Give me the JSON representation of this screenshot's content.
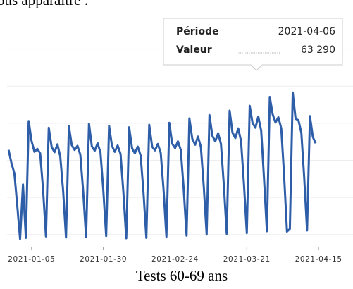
{
  "intro": "ous apparaître :",
  "chart_data": {
    "type": "line",
    "title": "Tests 60-69 ans",
    "color": "#2f5ea8",
    "grid": true,
    "xlim": [
      "2020-12-25",
      "2021-04-27"
    ],
    "xticks": [
      "2021-01-05",
      "2021-01-30",
      "2021-02-24",
      "2021-03-21",
      "2021-04-15"
    ],
    "ylim": [
      20000,
      85000
    ],
    "yticks": [
      25000,
      35000,
      45000,
      55000,
      65000,
      75000
    ],
    "x": [
      "2020-12-28",
      "2020-12-29",
      "2020-12-30",
      "2020-12-31",
      "2021-01-01",
      "2021-01-02",
      "2021-01-03",
      "2021-01-04",
      "2021-01-05",
      "2021-01-06",
      "2021-01-07",
      "2021-01-08",
      "2021-01-09",
      "2021-01-10",
      "2021-01-11",
      "2021-01-12",
      "2021-01-13",
      "2021-01-14",
      "2021-01-15",
      "2021-01-16",
      "2021-01-17",
      "2021-01-18",
      "2021-01-19",
      "2021-01-20",
      "2021-01-21",
      "2021-01-22",
      "2021-01-23",
      "2021-01-24",
      "2021-01-25",
      "2021-01-26",
      "2021-01-27",
      "2021-01-28",
      "2021-01-29",
      "2021-01-30",
      "2021-01-31",
      "2021-02-01",
      "2021-02-02",
      "2021-02-03",
      "2021-02-04",
      "2021-02-05",
      "2021-02-06",
      "2021-02-07",
      "2021-02-08",
      "2021-02-09",
      "2021-02-10",
      "2021-02-11",
      "2021-02-12",
      "2021-02-13",
      "2021-02-14",
      "2021-02-15",
      "2021-02-16",
      "2021-02-17",
      "2021-02-18",
      "2021-02-19",
      "2021-02-20",
      "2021-02-21",
      "2021-02-22",
      "2021-02-23",
      "2021-02-24",
      "2021-02-25",
      "2021-02-26",
      "2021-02-27",
      "2021-02-28",
      "2021-03-01",
      "2021-03-02",
      "2021-03-03",
      "2021-03-04",
      "2021-03-05",
      "2021-03-06",
      "2021-03-07",
      "2021-03-08",
      "2021-03-09",
      "2021-03-10",
      "2021-03-11",
      "2021-03-12",
      "2021-03-13",
      "2021-03-14",
      "2021-03-15",
      "2021-03-16",
      "2021-03-17",
      "2021-03-18",
      "2021-03-19",
      "2021-03-20",
      "2021-03-21",
      "2021-03-22",
      "2021-03-23",
      "2021-03-24",
      "2021-03-25",
      "2021-03-26",
      "2021-03-27",
      "2021-03-28",
      "2021-03-29",
      "2021-03-30",
      "2021-03-31",
      "2021-04-01",
      "2021-04-02",
      "2021-04-03",
      "2021-04-04",
      "2021-04-05",
      "2021-04-06",
      "2021-04-07",
      "2021-04-08",
      "2021-04-09",
      "2021-04-10",
      "2021-04-11",
      "2021-04-12",
      "2021-04-13",
      "2021-04-14"
    ],
    "values": [
      47800,
      44200,
      41500,
      33000,
      23800,
      38500,
      24100,
      55600,
      50200,
      47300,
      48100,
      46900,
      37200,
      24500,
      53800,
      48600,
      47200,
      49300,
      46100,
      36800,
      24200,
      54200,
      49100,
      47800,
      48900,
      46500,
      36500,
      24300,
      54900,
      48800,
      47600,
      49600,
      47100,
      37000,
      24600,
      54300,
      48900,
      47300,
      49000,
      46700,
      36400,
      24000,
      53900,
      48300,
      46900,
      48700,
      46300,
      36200,
      24100,
      54600,
      48700,
      47700,
      49400,
      47000,
      36900,
      24400,
      55100,
      49500,
      48300,
      50100,
      47800,
      37300,
      24700,
      56300,
      50800,
      49200,
      51400,
      48600,
      37900,
      25000,
      57200,
      51600,
      50100,
      52300,
      49400,
      38300,
      25200,
      58400,
      52500,
      51000,
      53600,
      50200,
      38700,
      25400,
      59700,
      55100,
      53800,
      56800,
      53000,
      40100,
      25900,
      62100,
      57400,
      55200,
      56600,
      53600,
      41000,
      25800,
      26500,
      63290,
      56200,
      55800,
      52400,
      40200,
      26100,
      56900,
      51300,
      49600
    ],
    "tooltip": {
      "period_label": "Période",
      "value_label": "Valeur",
      "value_text": "63 290"
    }
  }
}
